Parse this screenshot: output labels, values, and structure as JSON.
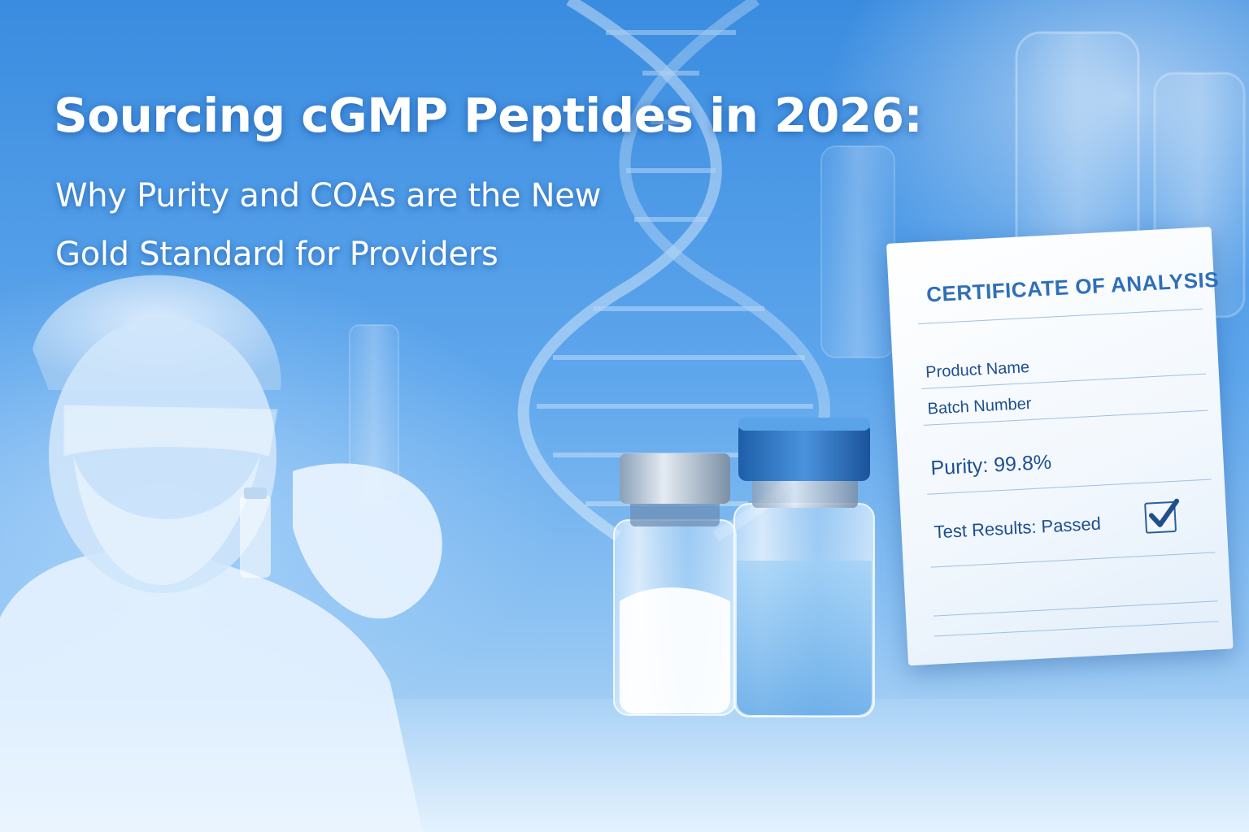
{
  "headline": "Sourcing cGMP Peptides in 2026:",
  "subheadline": {
    "line1": "Why Purity and COAs are the New",
    "line2": "Gold Standard for Providers"
  },
  "certificate": {
    "title": "CERTIFICATE OF ANALYSIS",
    "product_name_label": "Product Name",
    "batch_number_label": "Batch Number",
    "purity": "Purity: 99.8%",
    "test_results": "Test Results: Passed"
  },
  "icons": [
    "dna-helix-icon",
    "check-mark-icon"
  ],
  "colors": {
    "background": "#3a8ce0",
    "title_text": "#ffffff",
    "coa_text": "#1d4f8f"
  }
}
